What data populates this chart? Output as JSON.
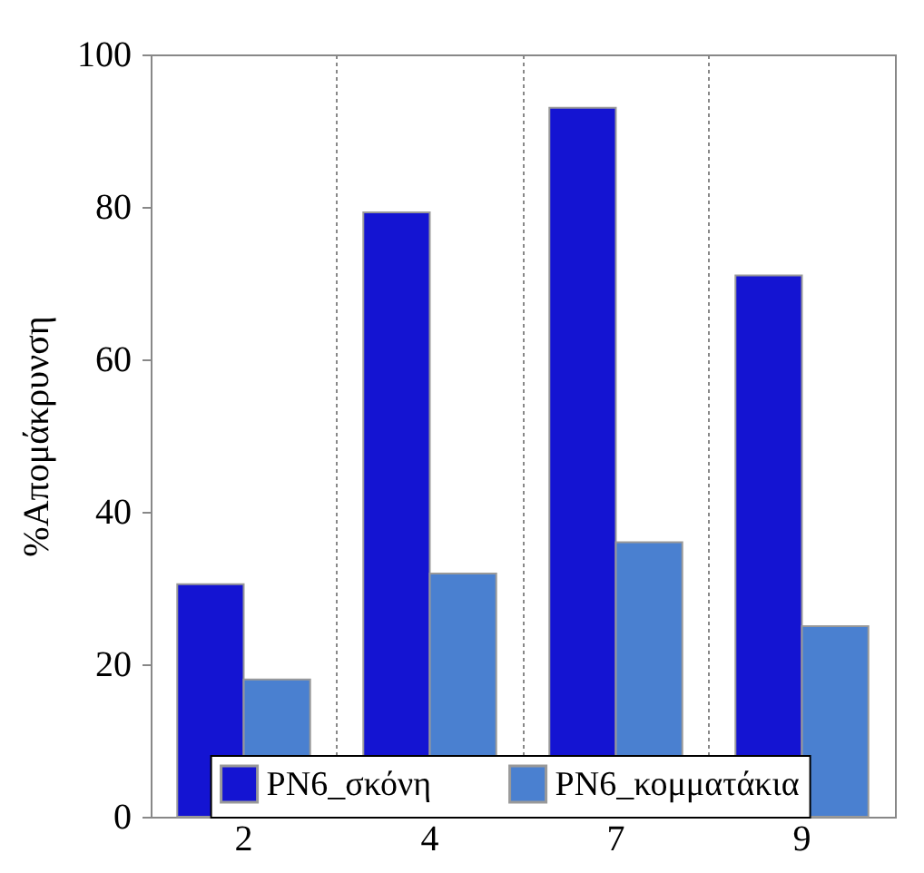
{
  "chart_data": {
    "type": "bar",
    "ylabel": "%Απομάκρυνση",
    "categories": [
      "2",
      "4",
      "7",
      "9"
    ],
    "series": [
      {
        "name": "PN6_σκόνη",
        "color": "#1414d2",
        "values": [
          30.5,
          79.3,
          93,
          71
        ]
      },
      {
        "name": "PN6_κομματάκια",
        "color": "#4a80d0",
        "values": [
          18,
          31.9,
          36,
          25
        ]
      }
    ],
    "ylim": [
      0,
      100
    ],
    "yticks": [
      0,
      20,
      40,
      60,
      80,
      100
    ],
    "grid": "x",
    "legend": "bottom"
  }
}
